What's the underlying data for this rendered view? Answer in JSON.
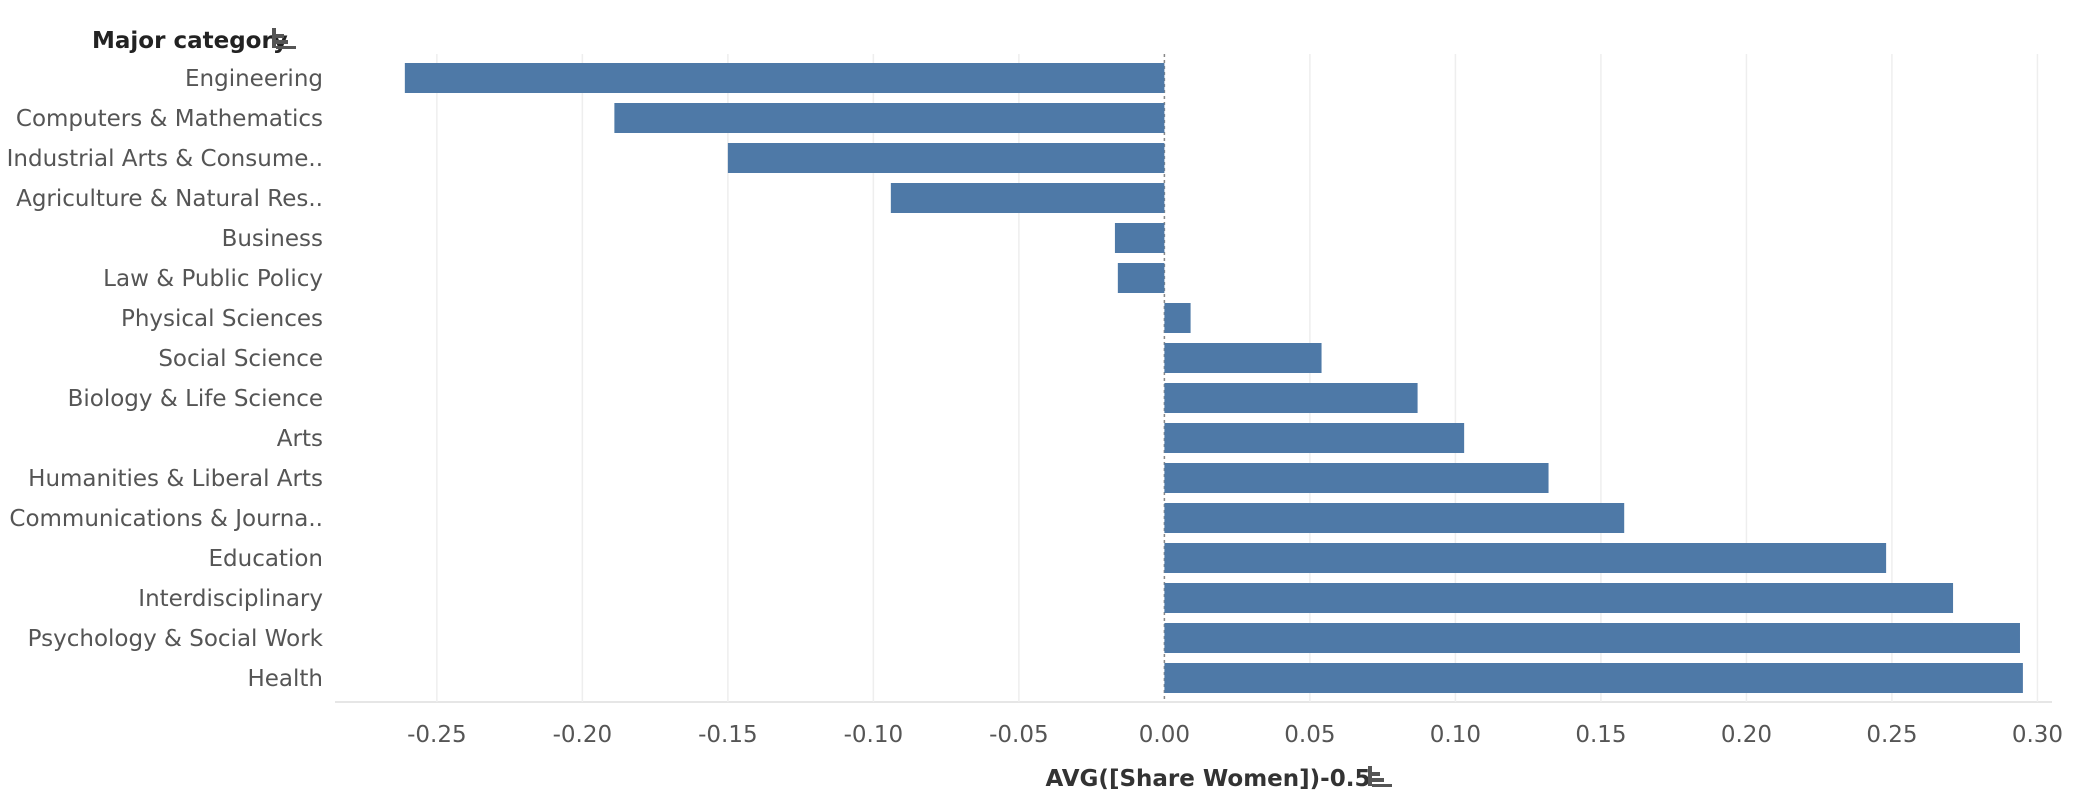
{
  "colors": {
    "bar": "#4e79a7",
    "grid": "#eeeeee",
    "zero_line": "#888888",
    "axis_line": "#dddddd",
    "text": "#555555"
  },
  "header": {
    "row_header": "Major category",
    "row_sort_icon": "sort-descending-icon"
  },
  "chart_data": {
    "type": "bar",
    "orientation": "horizontal",
    "xlabel": "AVG([Share Women])-0.5",
    "xlabel_sort_icon": "sort-descending-icon",
    "ylabel": "Major category",
    "xlim": [
      -0.285,
      0.305
    ],
    "x_ticks": [
      "-0.25",
      "-0.20",
      "-0.15",
      "-0.10",
      "-0.05",
      "0.00",
      "0.05",
      "0.10",
      "0.15",
      "0.20",
      "0.25",
      "0.30"
    ],
    "grid": true,
    "categories": [
      "Engineering",
      "Computers & Mathematics",
      "Industrial Arts & Consume..",
      "Agriculture & Natural Res..",
      "Business",
      "Law & Public Policy",
      "Physical Sciences",
      "Social Science",
      "Biology & Life Science",
      "Arts",
      "Humanities & Liberal Arts",
      "Communications & Journa..",
      "Education",
      "Interdisciplinary",
      "Psychology & Social Work",
      "Health"
    ],
    "values": [
      -0.261,
      -0.189,
      -0.15,
      -0.094,
      -0.017,
      -0.016,
      0.009,
      0.054,
      0.087,
      0.103,
      0.132,
      0.158,
      0.248,
      0.271,
      0.294,
      0.295
    ]
  }
}
